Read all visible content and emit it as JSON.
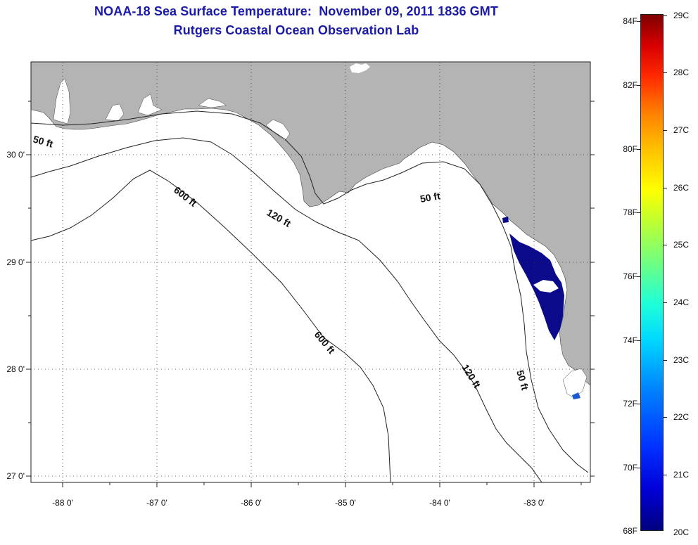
{
  "header": {
    "title": "NOAA-18 Sea Surface Temperature:  November 09, 2011 1836 GMT",
    "subtitle": "Rutgers Coastal Ocean Observation Lab"
  },
  "map": {
    "lon_labels": [
      "-88 0'",
      "-87 0'",
      "-86 0'",
      "-85 0'",
      "-84 0'",
      "-83 0'"
    ],
    "lat_labels": [
      "30 0'",
      "29 0'",
      "28 0'",
      "27 0'"
    ],
    "contour_labels": {
      "c50_west": "50 ft",
      "c50_mid": "50 ft",
      "c50_south": "50 ft",
      "c120_north": "120 ft",
      "c120_south": "120 ft",
      "c600_north": "600 ft",
      "c600_south": "600 ft"
    },
    "colors": {
      "land": "#b4b4b4",
      "water": "#ffffff",
      "sst_cold": "#0a0a8a",
      "sst_cool": "#1a5ad8"
    }
  },
  "colorbar": {
    "fahrenheit": [
      "84F",
      "82F",
      "80F",
      "78F",
      "76F",
      "74F",
      "72F",
      "70F",
      "68F"
    ],
    "celsius": [
      "29C",
      "28C",
      "27C",
      "26C",
      "25C",
      "24C",
      "23C",
      "22C",
      "21C",
      "20C"
    ],
    "colors": [
      "#00007f",
      "#0000d8",
      "#0030ff",
      "#0080ff",
      "#00d8ff",
      "#20ffd8",
      "#70ff80",
      "#c0ff30",
      "#ffff00",
      "#ffc000",
      "#ff7f00",
      "#ff2a00",
      "#d80000",
      "#7f0000"
    ]
  }
}
